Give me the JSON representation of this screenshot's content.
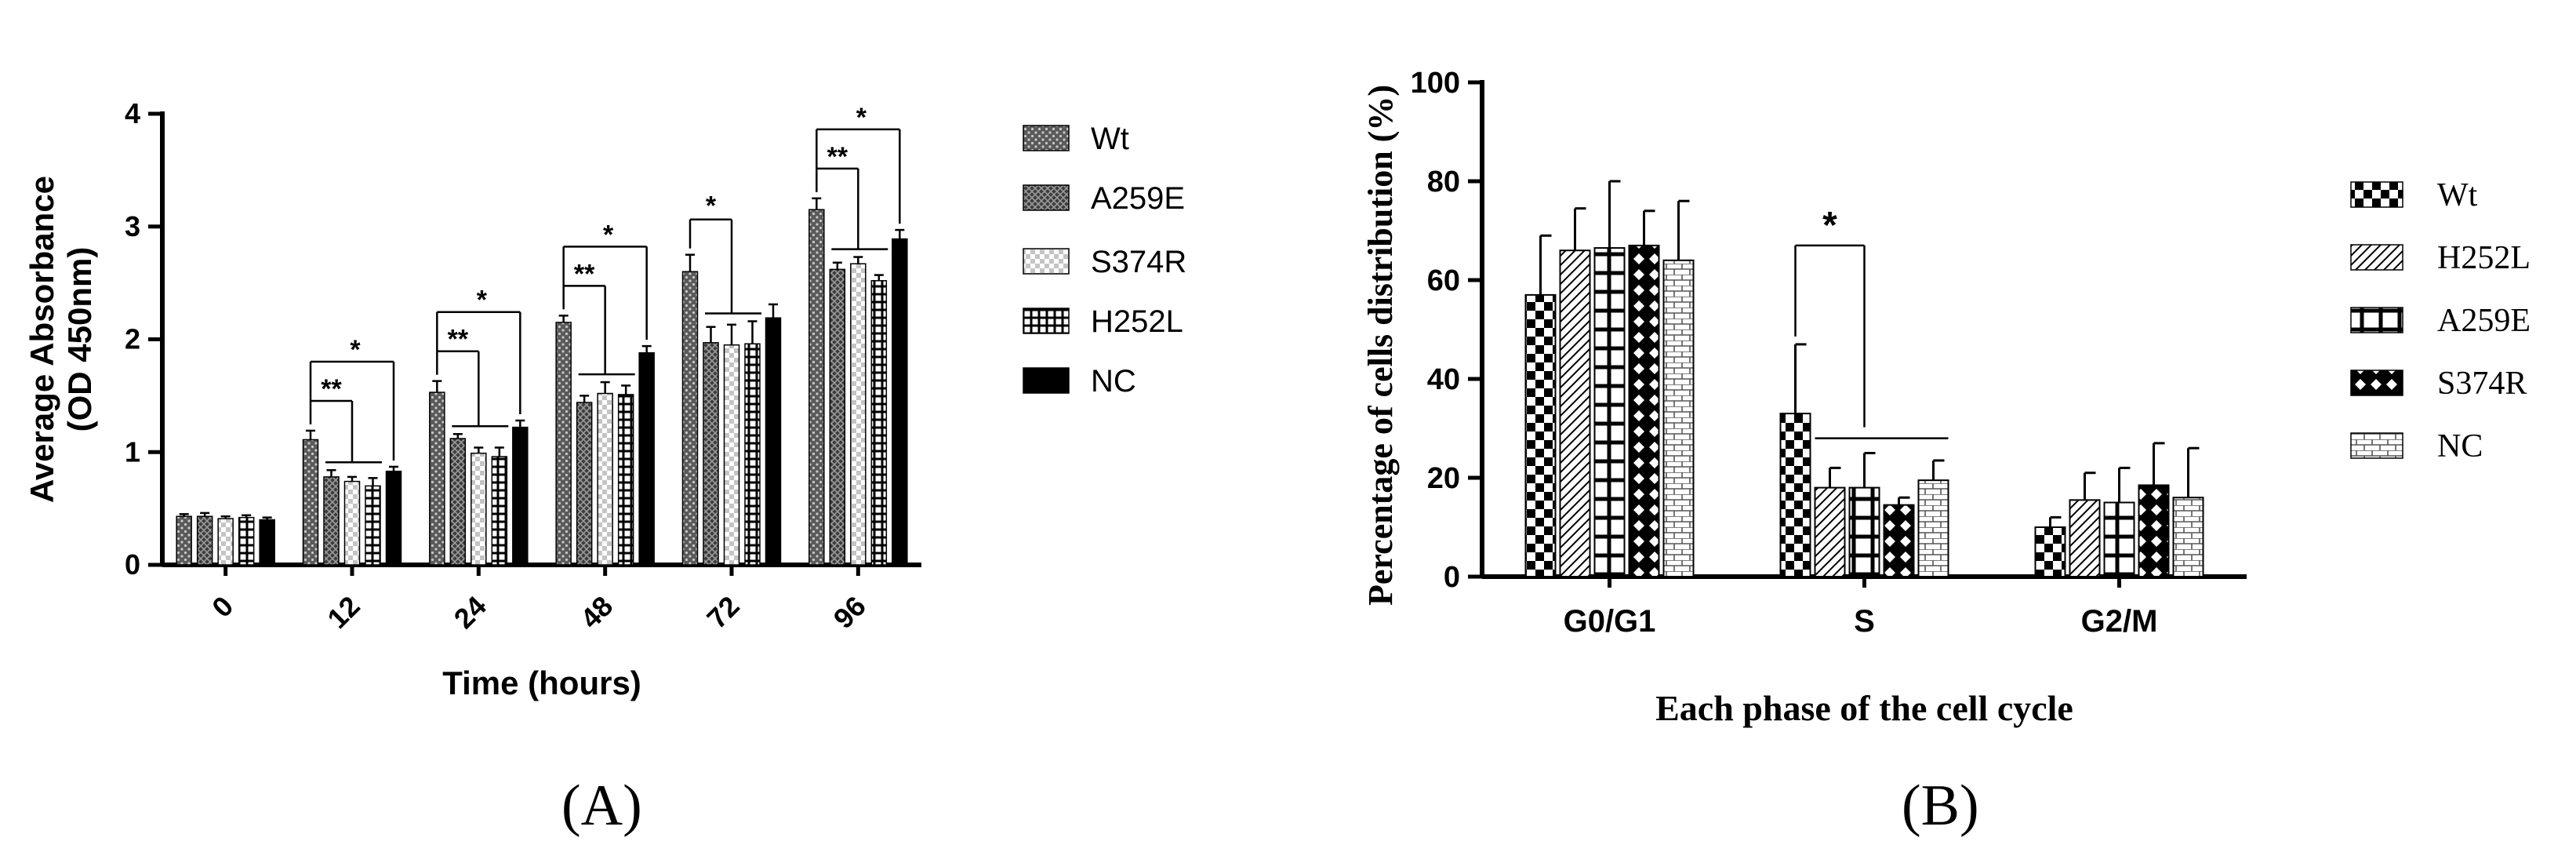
{
  "panels": {
    "a_label": "(A)",
    "b_label": "(B)"
  },
  "chart_data": [
    {
      "type": "bar",
      "xlabel": "Time (hours)",
      "ylabel_line1": "Average Absorbance",
      "ylabel_line2": "(OD 450nm)",
      "categories": [
        "0",
        "12",
        "24",
        "48",
        "72",
        "96"
      ],
      "ylim": [
        0,
        4
      ],
      "yticks": [
        "0",
        "1",
        "2",
        "3",
        "4"
      ],
      "legend_position": "right",
      "series": [
        {
          "name": "Wt",
          "pattern": "dots",
          "values": [
            0.43,
            1.11,
            1.53,
            2.15,
            2.6,
            3.15
          ],
          "errors": [
            0.02,
            0.08,
            0.1,
            0.06,
            0.15,
            0.1
          ]
        },
        {
          "name": "A259E",
          "pattern": "crosshatch",
          "values": [
            0.43,
            0.78,
            1.12,
            1.44,
            1.97,
            2.62
          ],
          "errors": [
            0.03,
            0.06,
            0.04,
            0.06,
            0.14,
            0.06
          ]
        },
        {
          "name": "S374R",
          "pattern": "checker",
          "values": [
            0.41,
            0.74,
            0.99,
            1.52,
            1.95,
            2.67
          ],
          "errors": [
            0.02,
            0.04,
            0.05,
            0.1,
            0.18,
            0.06
          ]
        },
        {
          "name": "H252L",
          "pattern": "grid",
          "values": [
            0.42,
            0.7,
            0.96,
            1.51,
            1.96,
            2.52
          ],
          "errors": [
            0.02,
            0.07,
            0.08,
            0.08,
            0.2,
            0.05
          ]
        },
        {
          "name": "NC",
          "pattern": "solid",
          "values": [
            0.4,
            0.83,
            1.22,
            1.88,
            2.19,
            2.89
          ],
          "errors": [
            0.02,
            0.04,
            0.06,
            0.06,
            0.12,
            0.08
          ]
        }
      ],
      "annotations": [
        {
          "category": "12",
          "marks": [
            "**",
            "*"
          ]
        },
        {
          "category": "24",
          "marks": [
            "**",
            "*"
          ]
        },
        {
          "category": "48",
          "marks": [
            "**",
            "*"
          ]
        },
        {
          "category": "72",
          "marks": [
            "*"
          ]
        },
        {
          "category": "96",
          "marks": [
            "**",
            "*"
          ]
        }
      ]
    },
    {
      "type": "bar",
      "xlabel": "Each phase of the cell cycle",
      "ylabel": "Percentage of cells distribution (%)",
      "categories": [
        "G0/G1",
        "S",
        "G2/M"
      ],
      "ylim": [
        0,
        100
      ],
      "yticks": [
        "0",
        "20",
        "40",
        "60",
        "80",
        "100"
      ],
      "legend_position": "right",
      "series": [
        {
          "name": "Wt",
          "pattern": "checker",
          "values": [
            57,
            33,
            10
          ],
          "errors": [
            12,
            14,
            2
          ]
        },
        {
          "name": "H252L",
          "pattern": "diagonal",
          "values": [
            66,
            18,
            15.5
          ],
          "errors": [
            8.5,
            4,
            5.5
          ]
        },
        {
          "name": "A259E",
          "pattern": "grid",
          "values": [
            66.5,
            18,
            15
          ],
          "errors": [
            13.5,
            7,
            7
          ]
        },
        {
          "name": "S374R",
          "pattern": "diamond",
          "values": [
            67,
            14.5,
            18.5
          ],
          "errors": [
            7,
            1.5,
            8.5
          ]
        },
        {
          "name": "NC",
          "pattern": "brick",
          "values": [
            64,
            19.5,
            16
          ],
          "errors": [
            12,
            4,
            10
          ]
        }
      ],
      "annotations": [
        {
          "category": "S",
          "marks": [
            "*"
          ]
        }
      ]
    }
  ]
}
